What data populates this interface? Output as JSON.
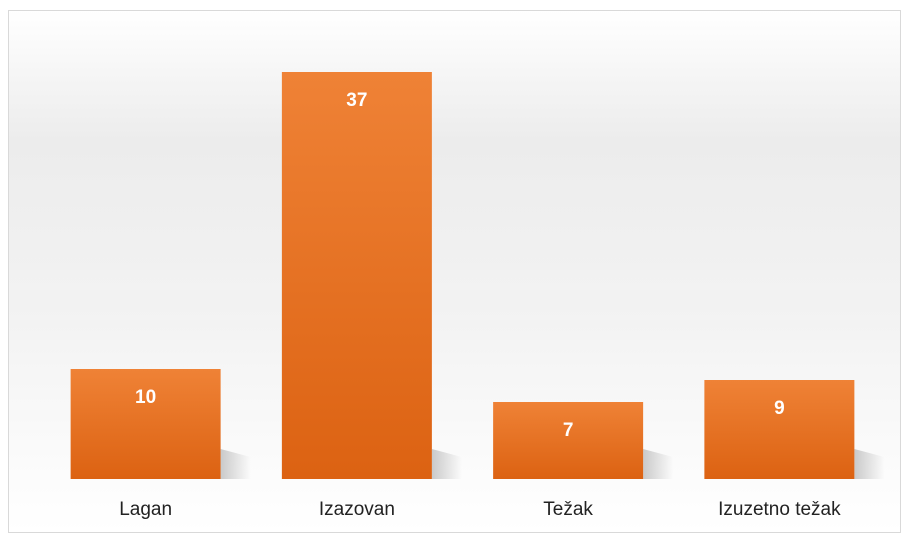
{
  "chart_data": {
    "type": "bar",
    "categories": [
      "Lagan",
      "Izazovan",
      "Težak",
      "Izuzetno težak"
    ],
    "values": [
      10,
      37,
      7,
      9
    ],
    "color": "#ed7d31"
  }
}
